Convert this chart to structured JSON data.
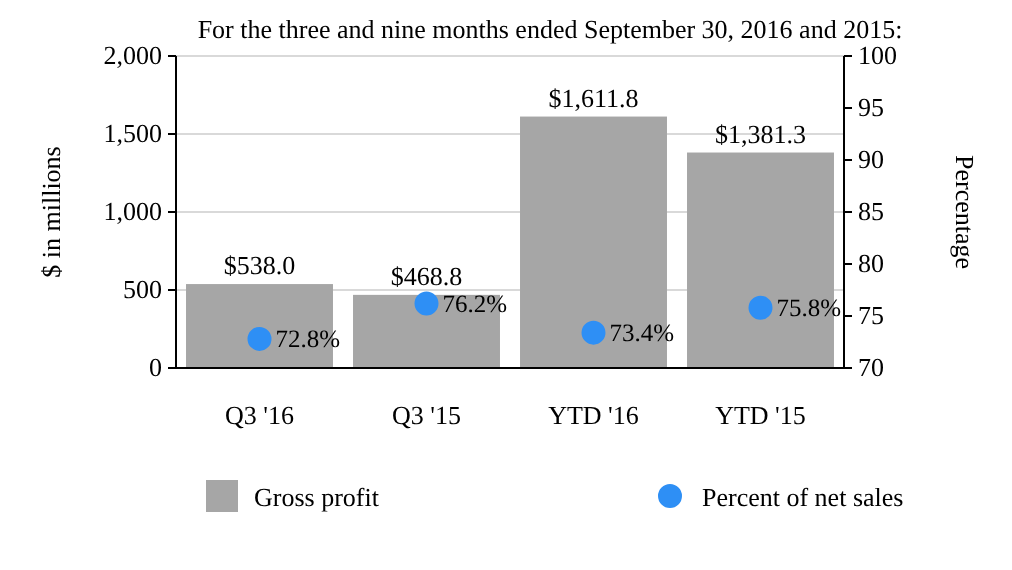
{
  "chart_data": {
    "type": "bar",
    "title": "For the three and nine months ended September 30, 2016 and 2015:",
    "ylabel": "$ in millions",
    "y2label": "Percentage",
    "categories": [
      "Q3 '16",
      "Q3 '15",
      "YTD '16",
      "YTD '15"
    ],
    "series": [
      {
        "name": "Gross profit",
        "color": "#a6a6a6",
        "values": [
          538.0,
          468.8,
          1611.8,
          1381.3
        ],
        "value_labels": [
          "$538.0",
          "$468.8",
          "$1,611.8",
          "$1,381.3"
        ]
      },
      {
        "name": "Percent of net sales",
        "type": "scatter",
        "axis": "y2",
        "marker": "circle",
        "color": "#2e8ff5",
        "values": [
          72.8,
          76.2,
          73.4,
          75.8
        ],
        "value_labels": [
          "72.8%",
          "76.2%",
          "73.4%",
          "75.8%"
        ]
      }
    ],
    "ylim": [
      0,
      2000
    ],
    "yticks": [
      0,
      {
        "value": 500,
        "label": "500"
      },
      {
        "value": 1000,
        "label": "1,000"
      },
      {
        "value": 1500,
        "label": "1,500"
      },
      {
        "value": 2000,
        "label": "2,000"
      }
    ],
    "y2lim": [
      70,
      100
    ],
    "y2ticks": [
      70,
      75,
      80,
      85,
      90,
      95,
      100
    ],
    "grid": "y",
    "legend": "bottom"
  }
}
